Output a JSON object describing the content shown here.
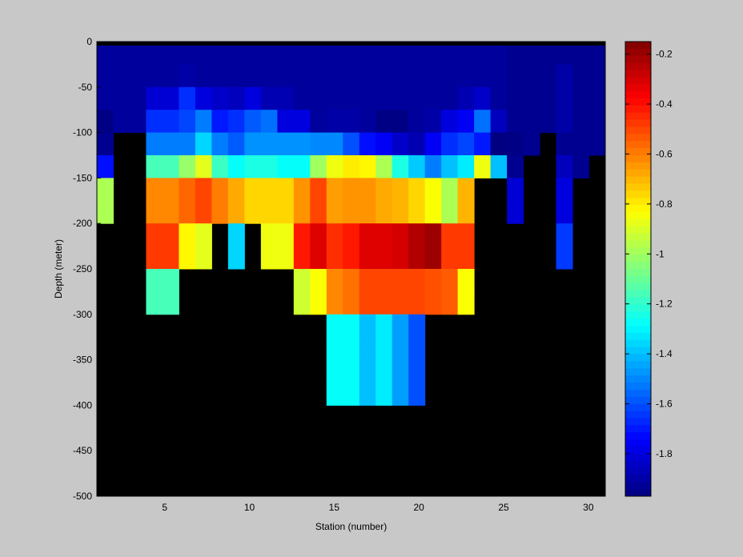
{
  "chart_data": {
    "type": "heatmap",
    "title": "",
    "xlabel": "Station (number)",
    "ylabel": "Depth (meter)",
    "xlim": [
      1,
      31
    ],
    "ylim": [
      -500,
      0
    ],
    "x_ticks": [
      5,
      10,
      15,
      20,
      25,
      30
    ],
    "y_ticks": [
      0,
      -50,
      -100,
      -150,
      -200,
      -250,
      -300,
      -350,
      -400,
      -450,
      -500
    ],
    "colorbar": {
      "range": [
        -1.97,
        -0.15
      ],
      "ticks": [
        -0.2,
        -0.4,
        -0.6,
        -0.8,
        -1,
        -1.2,
        -1.4,
        -1.6,
        -1.8
      ],
      "colormap": "jet"
    },
    "no_data_color": "#000000",
    "background_color": "#c8c8c8",
    "cell_depth_step": 25,
    "cell_station_step": 1,
    "depth_rows_top": [
      0,
      -25,
      -50,
      -75,
      -100,
      -125,
      -150,
      -175,
      -200,
      -225,
      -250,
      -275,
      -300,
      -325,
      -350,
      -375,
      -400,
      -425,
      -450,
      -475
    ],
    "stations": [
      1,
      2,
      3,
      4,
      5,
      6,
      7,
      8,
      9,
      10,
      11,
      12,
      13,
      14,
      15,
      16,
      17,
      18,
      19,
      20,
      21,
      22,
      23,
      24,
      25,
      26,
      27,
      28,
      29,
      30,
      31
    ],
    "values": [
      [
        -1.92,
        -1.92,
        -1.92,
        -1.92,
        -1.92,
        -1.92,
        -1.92,
        -1.92,
        -1.92,
        -1.92,
        -1.92,
        -1.92,
        -1.92,
        -1.92,
        -1.92,
        -1.92,
        -1.92,
        -1.92,
        -1.92,
        -1.92,
        -1.92,
        -1.92,
        -1.92,
        -1.92,
        -1.92,
        -1.94,
        -1.94,
        -1.94,
        -1.94,
        -1.94,
        -1.94
      ],
      [
        -1.92,
        -1.92,
        -1.92,
        -1.92,
        -1.92,
        -1.9,
        -1.92,
        -1.92,
        -1.92,
        -1.92,
        -1.92,
        -1.92,
        -1.92,
        -1.92,
        -1.92,
        -1.92,
        -1.92,
        -1.92,
        -1.92,
        -1.92,
        -1.92,
        -1.92,
        -1.92,
        -1.92,
        -1.92,
        -1.94,
        -1.94,
        -1.94,
        -1.9,
        -1.94,
        -1.94
      ],
      [
        -1.92,
        -1.92,
        -1.92,
        -1.82,
        -1.82,
        -1.66,
        -1.8,
        -1.84,
        -1.86,
        -1.8,
        -1.88,
        -1.88,
        -1.92,
        -1.92,
        -1.92,
        -1.92,
        -1.92,
        -1.92,
        -1.92,
        -1.92,
        -1.92,
        -1.92,
        -1.88,
        -1.84,
        -1.92,
        -1.94,
        -1.94,
        -1.94,
        -1.9,
        -1.94,
        -1.94
      ],
      [
        -1.96,
        -1.92,
        -1.92,
        -1.66,
        -1.66,
        -1.62,
        -1.52,
        -1.7,
        -1.66,
        -1.58,
        -1.54,
        -1.8,
        -1.8,
        -1.92,
        -1.9,
        -1.9,
        -1.92,
        -1.96,
        -1.96,
        -1.92,
        -1.9,
        -1.8,
        -1.76,
        -1.54,
        -1.86,
        -1.94,
        -1.94,
        -1.94,
        -1.9,
        -1.94,
        -1.94
      ],
      [
        -1.94,
        null,
        null,
        -1.52,
        -1.52,
        -1.52,
        -1.36,
        -1.52,
        -1.58,
        -1.48,
        -1.48,
        -1.48,
        -1.48,
        -1.5,
        -1.5,
        -1.6,
        -1.72,
        -1.76,
        -1.84,
        -1.88,
        -1.76,
        -1.66,
        -1.62,
        -1.7,
        -1.98,
        -1.96,
        -1.94,
        null,
        -1.94,
        -1.94,
        -1.94
      ],
      [
        -1.72,
        null,
        null,
        -1.16,
        -1.16,
        -1.02,
        -0.88,
        -1.18,
        -1.28,
        -1.24,
        -1.24,
        -1.28,
        -1.28,
        -1.0,
        -0.86,
        -0.8,
        -0.82,
        -0.98,
        -1.24,
        -1.38,
        -1.52,
        -1.4,
        -1.32,
        -0.86,
        -1.4,
        -1.94,
        null,
        null,
        -1.86,
        -1.94,
        null
      ],
      [
        -0.98,
        null,
        null,
        -0.62,
        -0.62,
        -0.56,
        -0.5,
        -0.6,
        -0.68,
        -0.76,
        -0.76,
        -0.76,
        -0.64,
        -0.5,
        -0.66,
        -0.64,
        -0.64,
        -0.68,
        -0.7,
        -0.76,
        -0.84,
        -0.98,
        -0.7,
        null,
        null,
        -1.82,
        null,
        null,
        -1.8,
        null,
        null
      ],
      [
        -0.98,
        null,
        null,
        -0.62,
        -0.62,
        -0.56,
        -0.5,
        -0.6,
        -0.68,
        -0.76,
        -0.76,
        -0.76,
        -0.64,
        -0.5,
        -0.66,
        -0.64,
        -0.64,
        -0.68,
        -0.7,
        -0.76,
        -0.84,
        -0.98,
        -0.7,
        null,
        null,
        -1.82,
        null,
        null,
        -1.8,
        null,
        null
      ],
      [
        null,
        null,
        null,
        -0.48,
        -0.48,
        -0.82,
        -0.88,
        null,
        -1.36,
        null,
        -0.86,
        -0.86,
        -0.42,
        -0.32,
        -0.46,
        -0.42,
        -0.32,
        -0.32,
        -0.3,
        -0.24,
        -0.2,
        -0.48,
        -0.48,
        null,
        null,
        null,
        null,
        null,
        -1.64,
        null,
        null
      ],
      [
        null,
        null,
        null,
        -0.48,
        -0.48,
        -0.82,
        -0.88,
        null,
        -1.36,
        null,
        -0.86,
        -0.86,
        -0.42,
        -0.32,
        -0.46,
        -0.42,
        -0.32,
        -0.32,
        -0.3,
        -0.24,
        -0.2,
        -0.48,
        -0.48,
        null,
        null,
        null,
        null,
        null,
        -1.64,
        null,
        null
      ],
      [
        null,
        null,
        null,
        -1.16,
        -1.16,
        null,
        null,
        null,
        null,
        null,
        null,
        null,
        -0.92,
        -0.84,
        -0.62,
        -0.58,
        -0.5,
        -0.5,
        -0.5,
        -0.5,
        -0.52,
        -0.54,
        -0.84,
        null,
        null,
        null,
        null,
        null,
        null,
        null,
        null
      ],
      [
        null,
        null,
        null,
        -1.16,
        -1.16,
        null,
        null,
        null,
        null,
        null,
        null,
        null,
        -0.92,
        -0.84,
        -0.62,
        -0.58,
        -0.5,
        -0.5,
        -0.5,
        -0.5,
        -0.52,
        -0.54,
        -0.84,
        null,
        null,
        null,
        null,
        null,
        null,
        null,
        null
      ],
      [
        null,
        null,
        null,
        null,
        null,
        null,
        null,
        null,
        null,
        null,
        null,
        null,
        null,
        null,
        -1.28,
        -1.28,
        -1.4,
        -1.32,
        -1.46,
        -1.6,
        null,
        null,
        null,
        null,
        null,
        null,
        null,
        null,
        null,
        null,
        null
      ],
      [
        null,
        null,
        null,
        null,
        null,
        null,
        null,
        null,
        null,
        null,
        null,
        null,
        null,
        null,
        -1.28,
        -1.28,
        -1.4,
        -1.32,
        -1.46,
        -1.6,
        null,
        null,
        null,
        null,
        null,
        null,
        null,
        null,
        null,
        null,
        null
      ],
      [
        null,
        null,
        null,
        null,
        null,
        null,
        null,
        null,
        null,
        null,
        null,
        null,
        null,
        null,
        -1.28,
        -1.28,
        -1.4,
        -1.32,
        -1.46,
        -1.6,
        null,
        null,
        null,
        null,
        null,
        null,
        null,
        null,
        null,
        null,
        null
      ],
      [
        null,
        null,
        null,
        null,
        null,
        null,
        null,
        null,
        null,
        null,
        null,
        null,
        null,
        null,
        -1.28,
        -1.28,
        -1.4,
        -1.32,
        -1.46,
        -1.6,
        null,
        null,
        null,
        null,
        null,
        null,
        null,
        null,
        null,
        null,
        null
      ],
      [
        null,
        null,
        null,
        null,
        null,
        null,
        null,
        null,
        null,
        null,
        null,
        null,
        null,
        null,
        null,
        null,
        null,
        null,
        null,
        null,
        null,
        null,
        null,
        null,
        null,
        null,
        null,
        null,
        null,
        null,
        null
      ],
      [
        null,
        null,
        null,
        null,
        null,
        null,
        null,
        null,
        null,
        null,
        null,
        null,
        null,
        null,
        null,
        null,
        null,
        null,
        null,
        null,
        null,
        null,
        null,
        null,
        null,
        null,
        null,
        null,
        null,
        null,
        null
      ],
      [
        null,
        null,
        null,
        null,
        null,
        null,
        null,
        null,
        null,
        null,
        null,
        null,
        null,
        null,
        null,
        null,
        null,
        null,
        null,
        null,
        null,
        null,
        null,
        null,
        null,
        null,
        null,
        null,
        null,
        null,
        null
      ],
      [
        null,
        null,
        null,
        null,
        null,
        null,
        null,
        null,
        null,
        null,
        null,
        null,
        null,
        null,
        null,
        null,
        null,
        null,
        null,
        null,
        null,
        null,
        null,
        null,
        null,
        null,
        null,
        null,
        null,
        null,
        null
      ]
    ]
  }
}
